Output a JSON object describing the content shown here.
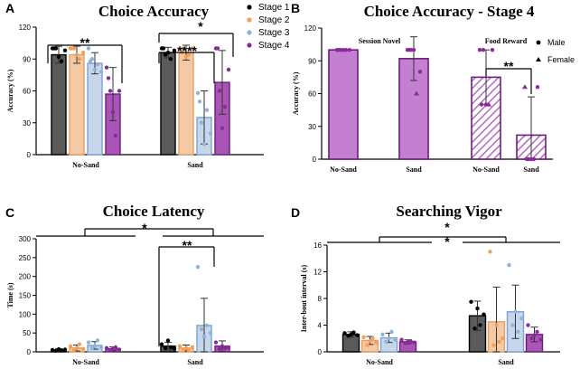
{
  "colors": {
    "stage1": "#5a5a5a",
    "stage2": "#f4c9a3",
    "stage3": "#c7d6ea",
    "stage4": "#a855b5",
    "stage1_edge": "#000000",
    "stage2_edge": "#e2a064",
    "stage3_edge": "#7fa2cf",
    "stage4_edge": "#6b1d7e",
    "stage1_dot": "#000000",
    "stage2_dot": "#f0a05a",
    "stage3_dot": "#8fb3db",
    "stage4_dot": "#8a2a9a",
    "panelB_fill": "#c57fd0",
    "panelB_edge": "#6b1d7e"
  },
  "chart_data": [
    {
      "panel": "A",
      "type": "bar",
      "title": "Choice Accuracy",
      "xlabel": "",
      "ylabel": "Accuracy (%)",
      "ylim": [
        0,
        120
      ],
      "yticks": [
        0,
        30,
        60,
        90,
        120
      ],
      "groups": [
        "No-Sand",
        "Sand"
      ],
      "series": [
        {
          "name": "Stage 1",
          "values": [
            94,
            96
          ],
          "errors": [
            8,
            5
          ]
        },
        {
          "name": "Stage 2",
          "values": [
            94,
            96
          ],
          "errors": [
            8,
            7
          ]
        },
        {
          "name": "Stage 3",
          "values": [
            86,
            35
          ],
          "errors": [
            10,
            25
          ]
        },
        {
          "name": "Stage 4",
          "values": [
            57,
            68
          ],
          "errors": [
            25,
            30
          ]
        }
      ],
      "legend": [
        "Stage 1",
        "Stage 2",
        "Stage 3",
        "Stage 4"
      ],
      "annotations": [
        "**",
        "****",
        "*"
      ]
    },
    {
      "panel": "B",
      "type": "bar",
      "title": "Choice Accuracy - Stage 4",
      "xlabel": "",
      "ylabel": "Accuracy (%)",
      "ylim": [
        0,
        120
      ],
      "yticks": [
        0,
        30,
        60,
        90,
        120
      ],
      "subgroups": [
        "Session Novel",
        "Food Reward"
      ],
      "categories": [
        "No-Sand",
        "Sand",
        "No-Sand",
        "Sand"
      ],
      "values": [
        100,
        92,
        75,
        22
      ],
      "errors": [
        0,
        20,
        25,
        35
      ],
      "legend": [
        "Male",
        "Female"
      ],
      "annotations": [
        "**"
      ]
    },
    {
      "panel": "C",
      "type": "bar",
      "title": "Choice Latency",
      "xlabel": "",
      "ylabel": "Time (s)",
      "ylim": [
        0,
        300
      ],
      "yticks": [
        0,
        50,
        100,
        150,
        200,
        250,
        300
      ],
      "groups": [
        "No-Sand",
        "Sand"
      ],
      "series": [
        {
          "name": "Stage 1",
          "values": [
            5,
            15
          ],
          "errors": [
            3,
            10
          ]
        },
        {
          "name": "Stage 2",
          "values": [
            10,
            10
          ],
          "errors": [
            8,
            8
          ]
        },
        {
          "name": "Stage 3",
          "values": [
            17,
            70
          ],
          "errors": [
            10,
            72
          ]
        },
        {
          "name": "Stage 4",
          "values": [
            8,
            15
          ],
          "errors": [
            5,
            14
          ]
        }
      ],
      "annotations": [
        "*",
        "**"
      ]
    },
    {
      "panel": "D",
      "type": "bar",
      "title": "Searching Vigor",
      "xlabel": "",
      "ylabel": "Inter-bout interval (s)",
      "ylim": [
        0,
        16
      ],
      "yticks": [
        0,
        4,
        8,
        12,
        16
      ],
      "groups": [
        "No-Sand",
        "Sand"
      ],
      "series": [
        {
          "name": "Stage 1",
          "values": [
            2.6,
            5.4
          ],
          "errors": [
            0.4,
            2.2
          ]
        },
        {
          "name": "Stage 2",
          "values": [
            1.7,
            4.5
          ],
          "errors": [
            0.6,
            5.2
          ]
        },
        {
          "name": "Stage 3",
          "values": [
            2.1,
            6.0
          ],
          "errors": [
            0.7,
            4.0
          ]
        },
        {
          "name": "Stage 4",
          "values": [
            1.5,
            2.6
          ],
          "errors": [
            0.3,
            1.1
          ]
        }
      ],
      "annotations": [
        "*",
        "*"
      ]
    }
  ]
}
